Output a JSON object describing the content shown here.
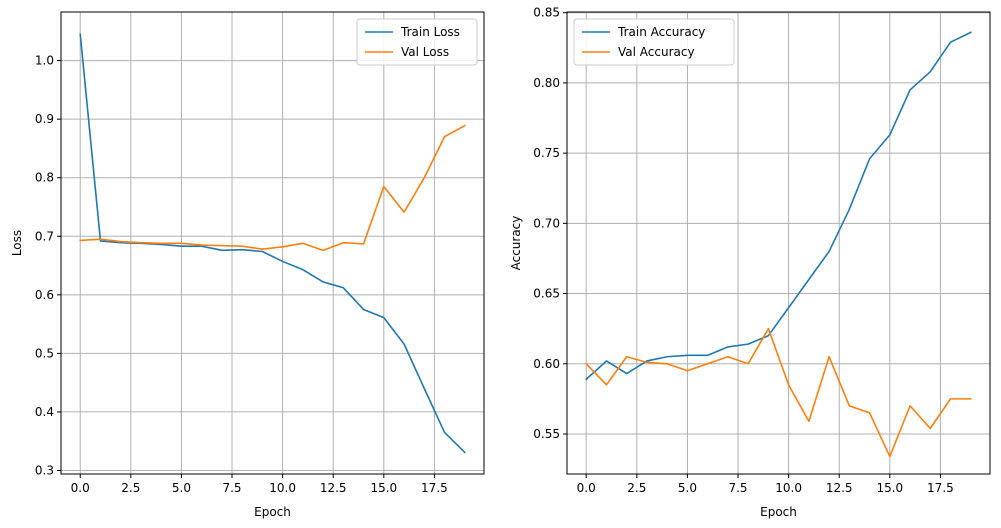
{
  "chart_data": [
    {
      "type": "line",
      "xlabel": "Epoch",
      "ylabel": "Loss",
      "xlim": [
        -0.95,
        19.95
      ],
      "ylim": [
        0.294,
        1.083
      ],
      "xticks": [
        0.0,
        2.5,
        5.0,
        7.5,
        10.0,
        12.5,
        15.0,
        17.5
      ],
      "xtick_labels": [
        "0.0",
        "2.5",
        "5.0",
        "7.5",
        "10.0",
        "12.5",
        "15.0",
        "17.5"
      ],
      "yticks": [
        0.3,
        0.4,
        0.5,
        0.6,
        0.7,
        0.8,
        0.9,
        1.0
      ],
      "ytick_labels": [
        "0.3",
        "0.4",
        "0.5",
        "0.6",
        "0.7",
        "0.8",
        "0.9",
        "1.0"
      ],
      "grid": true,
      "legend_position": "top-right",
      "x": [
        0,
        1,
        2,
        3,
        4,
        5,
        6,
        7,
        8,
        9,
        10,
        11,
        12,
        13,
        14,
        15,
        16,
        17,
        18,
        19
      ],
      "series": [
        {
          "name": "Train Loss",
          "color": "#1f77b4",
          "values": [
            1.045,
            0.692,
            0.689,
            0.688,
            0.686,
            0.683,
            0.683,
            0.676,
            0.677,
            0.674,
            0.657,
            0.643,
            0.622,
            0.612,
            0.575,
            0.561,
            0.516,
            0.44,
            0.365,
            0.331
          ]
        },
        {
          "name": "Val Loss",
          "color": "#ff7f0e",
          "values": [
            0.693,
            0.695,
            0.691,
            0.689,
            0.688,
            0.688,
            0.685,
            0.684,
            0.683,
            0.678,
            0.682,
            0.688,
            0.676,
            0.689,
            0.687,
            0.785,
            0.741,
            0.8,
            0.87,
            0.889
          ]
        }
      ]
    },
    {
      "type": "line",
      "xlabel": "Epoch",
      "ylabel": "Accuracy",
      "xlim": [
        -0.95,
        19.95
      ],
      "ylim": [
        0.5215,
        0.8505
      ],
      "xticks": [
        0.0,
        2.5,
        5.0,
        7.5,
        10.0,
        12.5,
        15.0,
        17.5
      ],
      "xtick_labels": [
        "0.0",
        "2.5",
        "5.0",
        "7.5",
        "10.0",
        "12.5",
        "15.0",
        "17.5"
      ],
      "yticks": [
        0.55,
        0.6,
        0.65,
        0.7,
        0.75,
        0.8,
        0.85
      ],
      "ytick_labels": [
        "0.55",
        "0.60",
        "0.65",
        "0.70",
        "0.75",
        "0.80",
        "0.85"
      ],
      "grid": true,
      "legend_position": "top-left",
      "x": [
        0,
        1,
        2,
        3,
        4,
        5,
        6,
        7,
        8,
        9,
        10,
        11,
        12,
        13,
        14,
        15,
        16,
        17,
        18,
        19
      ],
      "series": [
        {
          "name": "Train Accuracy",
          "color": "#1f77b4",
          "values": [
            0.589,
            0.602,
            0.593,
            0.602,
            0.605,
            0.606,
            0.606,
            0.612,
            0.614,
            0.62,
            0.64,
            0.66,
            0.68,
            0.71,
            0.746,
            0.763,
            0.795,
            0.808,
            0.829,
            0.836
          ]
        },
        {
          "name": "Val Accuracy",
          "color": "#ff7f0e",
          "values": [
            0.6,
            0.585,
            0.605,
            0.601,
            0.6,
            0.595,
            0.6,
            0.605,
            0.6,
            0.625,
            0.585,
            0.559,
            0.605,
            0.57,
            0.565,
            0.534,
            0.57,
            0.554,
            0.575,
            0.575
          ]
        }
      ]
    }
  ]
}
